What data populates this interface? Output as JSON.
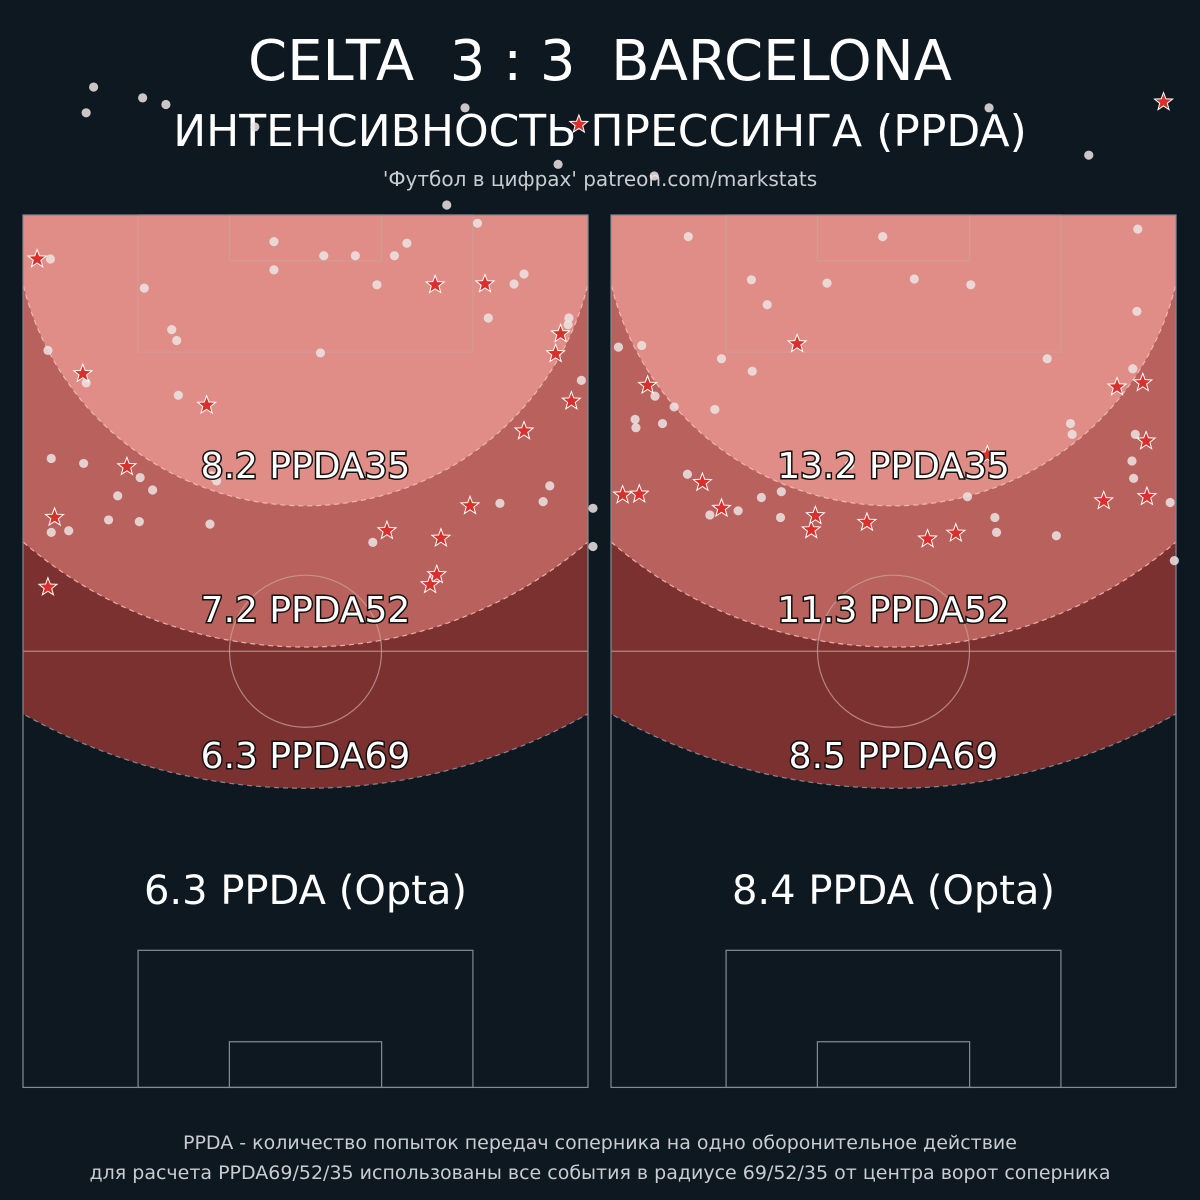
{
  "header": {
    "title": "CELTA  3 : 3  BARCELONA",
    "subtitle": "ИНТЕНСИВНОСТЬ ПРЕССИНГА (PPDA)",
    "credit": "'Футбол в цифрах' patreon.com/markstats"
  },
  "footer": {
    "line1": "PPDA - количество попыток передач соперника на одно оборонительное действие",
    "line2": "для расчета PPDA69/52/35 использованы все события в радиусе 69/52/35 от центра ворот соперника"
  },
  "colors": {
    "background": "#0e1820",
    "zone35": "#df8d86",
    "zone52": "#b9625d",
    "zone69": "#7c3131",
    "point": "#ece4e4",
    "star": "#d8302c"
  },
  "chart_data": [
    {
      "type": "scatter",
      "team": "CELTA",
      "labels": {
        "ppda35": "8.2 PPDA35",
        "ppda52": "7.2 PPDA52",
        "ppda69": "6.3 PPDA69",
        "opta": "6.3 PPDA (Opta)"
      },
      "values": {
        "ppda35": 8.2,
        "ppda52": 7.2,
        "ppda69": 6.3,
        "opta": 6.3
      },
      "radii": [
        35,
        52,
        69
      ],
      "points": [
        [
          8.5,
          120.4
        ],
        [
          14.4,
          119.1
        ],
        [
          7.6,
          117.3
        ],
        [
          17.2,
          118.3
        ],
        [
          27.9,
          115.6
        ],
        [
          53.2,
          117.9
        ],
        [
          64.4,
          111.1
        ],
        [
          51.0,
          106.2
        ],
        [
          30.2,
          101.8
        ],
        [
          46.2,
          101.6
        ],
        [
          54.7,
          104.0
        ],
        [
          36.2,
          100.1
        ],
        [
          3.3,
          99.7
        ],
        [
          14.6,
          96.2
        ],
        [
          30.2,
          98.4
        ],
        [
          44.7,
          100.1
        ],
        [
          40.0,
          100.1
        ],
        [
          42.6,
          96.6
        ],
        [
          60.3,
          97.9
        ],
        [
          59.1,
          96.7
        ],
        [
          56.0,
          92.6
        ],
        [
          65.7,
          92.6
        ],
        [
          65.6,
          91.8
        ],
        [
          17.9,
          91.2
        ],
        [
          18.5,
          89.9
        ],
        [
          3.0,
          88.7
        ],
        [
          35.8,
          88.4
        ],
        [
          7.6,
          84.8
        ],
        [
          67.2,
          85.1
        ],
        [
          18.7,
          83.3
        ],
        [
          3.4,
          75.7
        ],
        [
          7.3,
          75.1
        ],
        [
          14.1,
          73.4
        ],
        [
          22.7,
          73.6
        ],
        [
          57.4,
          70.3
        ],
        [
          63.4,
          72.4
        ],
        [
          62.6,
          70.5
        ],
        [
          11.4,
          71.2
        ],
        [
          15.6,
          71.9
        ],
        [
          23.3,
          73.0
        ],
        [
          68.6,
          69.7
        ],
        [
          68.6,
          65.1
        ],
        [
          3.4,
          66.8
        ],
        [
          42.1,
          65.6
        ],
        [
          22.5,
          67.8
        ],
        [
          14.0,
          68.1
        ],
        [
          10.3,
          68.3
        ],
        [
          5.5,
          67.0
        ]
      ],
      "stars": [
        [
          66.9,
          115.9
        ],
        [
          1.7,
          99.7
        ],
        [
          49.6,
          96.6
        ],
        [
          55.6,
          96.7
        ],
        [
          7.2,
          85.9
        ],
        [
          64.7,
          90.7
        ],
        [
          64.1,
          88.3
        ],
        [
          66.0,
          82.6
        ],
        [
          60.3,
          79.0
        ],
        [
          22.1,
          82.1
        ],
        [
          12.5,
          74.7
        ],
        [
          53.8,
          70.0
        ],
        [
          3.8,
          68.6
        ],
        [
          3.0,
          60.2
        ],
        [
          50.3,
          66.1
        ],
        [
          49.8,
          61.7
        ],
        [
          49.0,
          60.5
        ],
        [
          43.8,
          67.0
        ]
      ]
    },
    {
      "type": "scatter",
      "team": "BARCELONA",
      "labels": {
        "ppda35": "13.2 PPDA35",
        "ppda52": "11.3 PPDA52",
        "ppda69": "8.5 PPDA69",
        "opta": "8.4 PPDA (Opta)"
      },
      "values": {
        "ppda35": 13.2,
        "ppda52": 11.3,
        "ppda69": 8.5,
        "opta": 8.4
      },
      "radii": [
        35,
        52,
        69
      ],
      "points": [
        [
          45.5,
          117.9
        ],
        [
          57.5,
          112.2
        ],
        [
          5.2,
          109.7
        ],
        [
          9.3,
          102.4
        ],
        [
          63.4,
          103.3
        ],
        [
          32.7,
          102.4
        ],
        [
          16.9,
          97.2
        ],
        [
          43.3,
          96.6
        ],
        [
          26.0,
          96.8
        ],
        [
          18.8,
          94.2
        ],
        [
          36.5,
          97.3
        ],
        [
          63.3,
          93.4
        ],
        [
          3.7,
          89.3
        ],
        [
          0.9,
          89.1
        ],
        [
          13.3,
          87.7
        ],
        [
          52.5,
          87.7
        ],
        [
          62.8,
          86.5
        ],
        [
          17.0,
          86.2
        ],
        [
          5.3,
          83.2
        ],
        [
          7.6,
          81.9
        ],
        [
          12.5,
          81.6
        ],
        [
          2.9,
          80.4
        ],
        [
          63.1,
          78.6
        ],
        [
          3.0,
          79.4
        ],
        [
          6.2,
          79.9
        ],
        [
          55.3,
          79.9
        ],
        [
          55.5,
          78.6
        ],
        [
          62.7,
          75.4
        ],
        [
          39.0,
          75.5
        ],
        [
          28.7,
          74.9
        ],
        [
          9.2,
          73.8
        ],
        [
          62.9,
          73.3
        ],
        [
          20.5,
          71.7
        ],
        [
          18.1,
          71.0
        ],
        [
          15.3,
          69.4
        ],
        [
          11.9,
          68.9
        ],
        [
          20.4,
          68.6
        ],
        [
          42.9,
          71.1
        ],
        [
          46.2,
          68.6
        ],
        [
          46.4,
          66.8
        ],
        [
          53.6,
          66.4
        ],
        [
          67.8,
          63.4
        ],
        [
          67.3,
          70.4
        ]
      ],
      "stars": [
        [
          66.5,
          118.6
        ],
        [
          22.4,
          89.5
        ],
        [
          4.4,
          84.5
        ],
        [
          64.0,
          84.8
        ],
        [
          60.9,
          84.3
        ],
        [
          45.3,
          76.1
        ],
        [
          1.4,
          71.3
        ],
        [
          3.4,
          71.4
        ],
        [
          11.0,
          72.8
        ],
        [
          13.3,
          69.7
        ],
        [
          24.1,
          67.1
        ],
        [
          59.3,
          70.6
        ],
        [
          64.4,
          77.8
        ],
        [
          64.5,
          71.1
        ],
        [
          41.5,
          66.7
        ],
        [
          38.1,
          66.0
        ],
        [
          30.8,
          68.0
        ],
        [
          24.6,
          68.8
        ]
      ]
    }
  ]
}
